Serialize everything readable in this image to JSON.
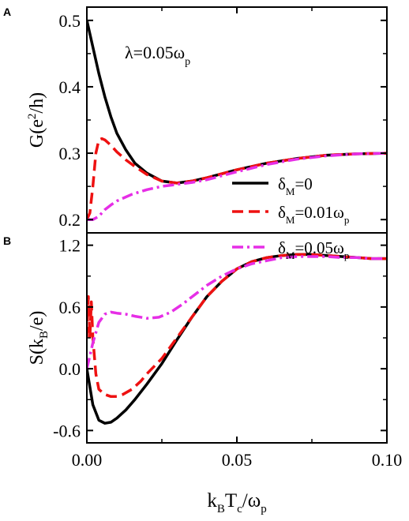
{
  "colors": {
    "delta0": "#000000",
    "delta001": "#ee1111",
    "delta005": "#e62ee6",
    "frame": "#000000"
  },
  "annotation": {
    "lambda": "λ=0.05ω",
    "lambda_sub": "p"
  },
  "xaxis": {
    "label_k": "k",
    "label_sub_B": "B",
    "label_T": "T",
    "label_sub_c": "c",
    "label_rest": "/ω",
    "label_sub_p": "p",
    "ticks": [
      "0.00",
      "0.05",
      "0.10"
    ]
  },
  "legend": {
    "entries": [
      {
        "prefix": "δ",
        "sub": "M",
        "suffix": "=0",
        "suffix_sub": ""
      },
      {
        "prefix": "δ",
        "sub": "M",
        "suffix": "=0.01ω",
        "suffix_sub": "p"
      },
      {
        "prefix": "δ",
        "sub": "M",
        "suffix": "=0.05ω",
        "suffix_sub": "p"
      }
    ]
  },
  "chart_data": [
    {
      "panel": "A",
      "type": "line",
      "ylabel": "G(e²/h)",
      "ylabel_parts": {
        "pre": "G(e",
        "sup": "2",
        "post": "/h)"
      },
      "xlim": [
        0,
        0.1
      ],
      "ylim": [
        0.18,
        0.52
      ],
      "yticks": [
        0.2,
        0.3,
        0.4,
        0.5
      ],
      "ytick_labels": [
        "0.2",
        "0.3",
        "0.4",
        "0.5"
      ],
      "series": [
        {
          "name": "δM=0",
          "style": "solid",
          "color": "#000000",
          "x": [
            0,
            0.002,
            0.004,
            0.006,
            0.008,
            0.01,
            0.013,
            0.016,
            0.02,
            0.025,
            0.03,
            0.035,
            0.04,
            0.05,
            0.06,
            0.07,
            0.08,
            0.09,
            0.1
          ],
          "y": [
            0.5,
            0.46,
            0.42,
            0.385,
            0.355,
            0.33,
            0.305,
            0.285,
            0.27,
            0.258,
            0.255,
            0.258,
            0.263,
            0.275,
            0.285,
            0.292,
            0.297,
            0.299,
            0.3
          ]
        },
        {
          "name": "δM=0.01ωp",
          "style": "dashed",
          "color": "#ee1111",
          "x": [
            0,
            0.001,
            0.002,
            0.003,
            0.004,
            0.005,
            0.006,
            0.008,
            0.01,
            0.013,
            0.016,
            0.02,
            0.025,
            0.03,
            0.035,
            0.04,
            0.05,
            0.06,
            0.07,
            0.08,
            0.09,
            0.1
          ],
          "y": [
            0.2,
            0.21,
            0.25,
            0.3,
            0.32,
            0.322,
            0.32,
            0.312,
            0.302,
            0.29,
            0.28,
            0.268,
            0.258,
            0.255,
            0.258,
            0.263,
            0.275,
            0.285,
            0.292,
            0.297,
            0.299,
            0.3
          ]
        },
        {
          "name": "δM=0.05ωp",
          "style": "dashdot",
          "color": "#e62ee6",
          "x": [
            0,
            0.002,
            0.004,
            0.006,
            0.008,
            0.01,
            0.015,
            0.02,
            0.025,
            0.03,
            0.035,
            0.04,
            0.05,
            0.06,
            0.07,
            0.08,
            0.09,
            0.1
          ],
          "y": [
            0.2,
            0.2,
            0.205,
            0.215,
            0.222,
            0.228,
            0.238,
            0.245,
            0.25,
            0.253,
            0.256,
            0.26,
            0.272,
            0.283,
            0.291,
            0.296,
            0.299,
            0.3
          ]
        }
      ]
    },
    {
      "panel": "B",
      "type": "line",
      "ylabel": "S(kB/e)",
      "ylabel_parts": {
        "pre": "S(k",
        "sub": "B",
        "post": "/e)"
      },
      "xlim": [
        0,
        0.1
      ],
      "ylim": [
        -0.72,
        1.32
      ],
      "yticks": [
        -0.6,
        0,
        0.6,
        1.2
      ],
      "ytick_labels": [
        "-0.6",
        "0.0",
        "0.6",
        "1.2"
      ],
      "series": [
        {
          "name": "δM=0",
          "style": "solid",
          "color": "#000000",
          "x": [
            0,
            0.002,
            0.004,
            0.006,
            0.008,
            0.01,
            0.013,
            0.016,
            0.02,
            0.025,
            0.03,
            0.035,
            0.04,
            0.045,
            0.05,
            0.055,
            0.06,
            0.065,
            0.07,
            0.075,
            0.08,
            0.085,
            0.09,
            0.095,
            0.1
          ],
          "y": [
            0.0,
            -0.35,
            -0.5,
            -0.53,
            -0.52,
            -0.48,
            -0.4,
            -0.3,
            -0.15,
            0.05,
            0.28,
            0.5,
            0.7,
            0.85,
            0.97,
            1.04,
            1.08,
            1.1,
            1.11,
            1.11,
            1.1,
            1.09,
            1.08,
            1.07,
            1.07
          ]
        },
        {
          "name": "δM=0.01ωp",
          "style": "dashed",
          "color": "#ee1111",
          "x": [
            0,
            0.0005,
            0.001,
            0.0015,
            0.002,
            0.003,
            0.004,
            0.006,
            0.008,
            0.01,
            0.012,
            0.015,
            0.018,
            0.02,
            0.025,
            0.03,
            0.035,
            0.04,
            0.045,
            0.05,
            0.055,
            0.06,
            0.065,
            0.07,
            0.075,
            0.08,
            0.085,
            0.09,
            0.095,
            0.1
          ],
          "y": [
            0.3,
            0.7,
            0.3,
            0.65,
            0.3,
            -0.05,
            -0.2,
            -0.25,
            -0.27,
            -0.27,
            -0.25,
            -0.2,
            -0.12,
            -0.05,
            0.1,
            0.3,
            0.5,
            0.7,
            0.85,
            0.97,
            1.04,
            1.08,
            1.1,
            1.11,
            1.11,
            1.1,
            1.09,
            1.08,
            1.07,
            1.07
          ]
        },
        {
          "name": "δM=0.05ωp",
          "style": "dashdot",
          "color": "#e62ee6",
          "x": [
            0,
            0.002,
            0.004,
            0.006,
            0.008,
            0.01,
            0.013,
            0.016,
            0.02,
            0.024,
            0.028,
            0.032,
            0.036,
            0.04,
            0.045,
            0.05,
            0.055,
            0.06,
            0.065,
            0.07,
            0.075,
            0.08,
            0.085,
            0.09,
            0.095,
            0.1
          ],
          "y": [
            0.0,
            0.25,
            0.45,
            0.53,
            0.55,
            0.54,
            0.53,
            0.51,
            0.49,
            0.5,
            0.55,
            0.63,
            0.72,
            0.81,
            0.9,
            0.97,
            1.02,
            1.05,
            1.08,
            1.09,
            1.09,
            1.09,
            1.08,
            1.08,
            1.07,
            1.07
          ]
        }
      ]
    }
  ]
}
